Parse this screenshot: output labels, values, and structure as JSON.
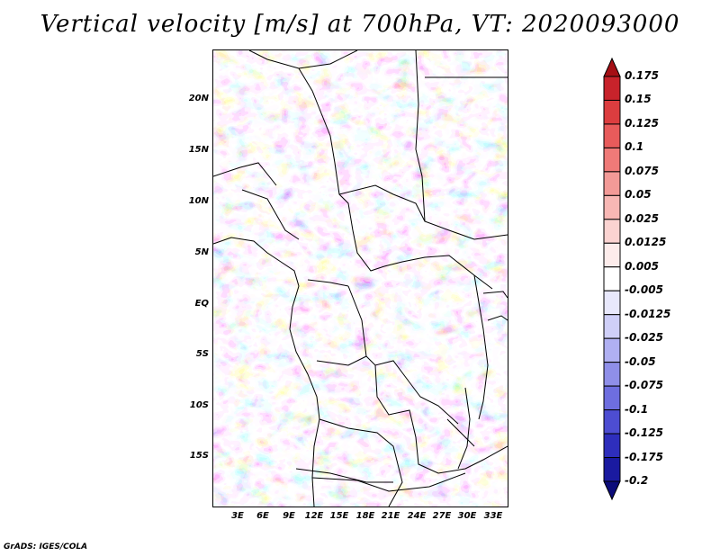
{
  "title": "Vertical velocity [m/s] at 700hPa, VT: 2020093000",
  "footer": "GrADS: IGES/COLA",
  "map": {
    "lat_labels": [
      "20N",
      "15N",
      "10N",
      "5N",
      "EQ",
      "5S",
      "10S",
      "15S"
    ],
    "lon_labels": [
      "3E",
      "6E",
      "9E",
      "12E",
      "15E",
      "18E",
      "21E",
      "24E",
      "27E",
      "30E",
      "33E"
    ]
  },
  "colorbar": {
    "labels": [
      "0.175",
      "0.15",
      "0.125",
      "0.1",
      "0.075",
      "0.05",
      "0.025",
      "0.0125",
      "0.005",
      "-0.005",
      "-0.0125",
      "-0.025",
      "-0.05",
      "-0.075",
      "-0.1",
      "-0.125",
      "-0.175",
      "-0.2"
    ],
    "colors": [
      "#a50f15",
      "#c8232b",
      "#dc3d3f",
      "#e85b5b",
      "#ef7a78",
      "#f39a97",
      "#f8b7b4",
      "#fbd3d1",
      "#fdeceb",
      "#ffffff",
      "#e8e8fc",
      "#cfcff8",
      "#b0b0f2",
      "#8f8fe9",
      "#6e6ee0",
      "#4d4dd2",
      "#2e2ebc",
      "#1a1aa0",
      "#0c0c7a"
    ]
  }
}
